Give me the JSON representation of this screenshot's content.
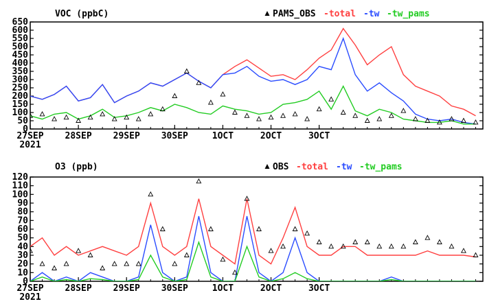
{
  "chart_data": [
    {
      "type": "line",
      "title": "VOC (ppbC)",
      "xlabel": "",
      "ylabel": "",
      "ylim": [
        0,
        650
      ],
      "xlim": [
        0,
        9.4
      ],
      "x_unit": "days since first label (27SEP 2021 00h)",
      "yticks": [
        0,
        50,
        100,
        150,
        200,
        250,
        300,
        350,
        400,
        450,
        500,
        550,
        600,
        650
      ],
      "xticks": [
        {
          "x": 0,
          "label": "27SEP",
          "sublabel": "2021"
        },
        {
          "x": 1,
          "label": "28SEP",
          "sublabel": ""
        },
        {
          "x": 2,
          "label": "29SEP",
          "sublabel": ""
        },
        {
          "x": 3,
          "label": "30SEP",
          "sublabel": ""
        },
        {
          "x": 4,
          "label": "1OCT",
          "sublabel": ""
        },
        {
          "x": 5,
          "label": "2OCT",
          "sublabel": ""
        },
        {
          "x": 6,
          "label": "3OCT",
          "sublabel": ""
        }
      ],
      "grid": false,
      "legend_position": "top-right",
      "legend": [
        {
          "label": "PAMS_OBS",
          "color": "#000000",
          "marker": "triangle"
        },
        {
          "label": "-total",
          "color": "#ff4040",
          "marker": "line"
        },
        {
          "label": "-tw",
          "color": "#2a4cff",
          "marker": "line"
        },
        {
          "label": "-tw_pams",
          "color": "#22cc22",
          "marker": "line"
        }
      ],
      "series": [
        {
          "name": "total",
          "color": "#ff4040",
          "x": [
            0,
            0.25,
            0.5,
            0.75,
            1,
            1.25,
            1.5,
            1.75,
            2,
            2.25,
            2.5,
            2.75,
            3,
            3.25,
            3.5,
            3.75,
            4,
            4.25,
            4.5,
            4.75,
            5,
            5.25,
            5.5,
            5.75,
            6,
            6.25,
            6.5,
            6.75,
            7,
            7.25,
            7.5,
            7.75,
            8,
            8.25,
            8.5,
            8.75,
            9,
            9.25
          ],
          "y": [
            200,
            180,
            210,
            260,
            170,
            190,
            270,
            160,
            200,
            230,
            280,
            260,
            300,
            340,
            290,
            250,
            330,
            380,
            420,
            370,
            320,
            330,
            300,
            360,
            430,
            480,
            610,
            510,
            390,
            450,
            500,
            330,
            260,
            230,
            200,
            140,
            120,
            80
          ]
        },
        {
          "name": "tw",
          "color": "#2a4cff",
          "x": [
            0,
            0.25,
            0.5,
            0.75,
            1,
            1.25,
            1.5,
            1.75,
            2,
            2.25,
            2.5,
            2.75,
            3,
            3.25,
            3.5,
            3.75,
            4,
            4.25,
            4.5,
            4.75,
            5,
            5.25,
            5.5,
            5.75,
            6,
            6.25,
            6.5,
            6.75,
            7,
            7.25,
            7.5,
            7.75,
            8,
            8.25,
            8.5,
            8.75,
            9,
            9.25
          ],
          "y": [
            200,
            180,
            210,
            260,
            170,
            190,
            270,
            160,
            200,
            230,
            280,
            260,
            300,
            340,
            290,
            250,
            330,
            340,
            380,
            320,
            290,
            300,
            270,
            300,
            380,
            360,
            550,
            330,
            230,
            280,
            220,
            170,
            90,
            60,
            50,
            60,
            40,
            30
          ]
        },
        {
          "name": "tw_pams",
          "color": "#22cc22",
          "x": [
            0,
            0.25,
            0.5,
            0.75,
            1,
            1.25,
            1.5,
            1.75,
            2,
            2.25,
            2.5,
            2.75,
            3,
            3.25,
            3.5,
            3.75,
            4,
            4.25,
            4.5,
            4.75,
            5,
            5.25,
            5.5,
            5.75,
            6,
            6.25,
            6.5,
            6.75,
            7,
            7.25,
            7.5,
            7.75,
            8,
            8.25,
            8.5,
            8.75,
            9,
            9.25
          ],
          "y": [
            80,
            60,
            90,
            100,
            60,
            80,
            120,
            70,
            80,
            100,
            130,
            110,
            150,
            130,
            100,
            90,
            140,
            120,
            110,
            90,
            100,
            150,
            160,
            180,
            230,
            120,
            260,
            110,
            80,
            120,
            100,
            60,
            50,
            40,
            40,
            50,
            30,
            30
          ]
        },
        {
          "name": "PAMS_OBS",
          "color": "#000000",
          "marker": "triangle",
          "x": [
            0,
            0.25,
            0.5,
            0.75,
            1,
            1.25,
            1.5,
            1.75,
            2,
            2.25,
            2.5,
            2.75,
            3,
            3.25,
            3.5,
            3.75,
            4,
            4.25,
            4.5,
            4.75,
            5,
            5.25,
            5.5,
            5.75,
            6,
            6.25,
            6.5,
            6.75,
            7,
            7.25,
            7.5,
            7.75,
            8,
            8.25,
            8.5,
            8.75,
            9,
            9.25
          ],
          "y": [
            80,
            90,
            60,
            70,
            50,
            70,
            90,
            60,
            70,
            60,
            90,
            120,
            200,
            350,
            280,
            160,
            210,
            100,
            80,
            60,
            70,
            80,
            90,
            60,
            120,
            180,
            100,
            80,
            50,
            60,
            80,
            110,
            60,
            50,
            40,
            60,
            50,
            40
          ]
        }
      ]
    },
    {
      "type": "line",
      "title": "O3 (ppb)",
      "xlabel": "",
      "ylabel": "",
      "ylim": [
        0,
        120
      ],
      "xlim": [
        0,
        9.4
      ],
      "x_unit": "days since first label (27SEP 2021 00h)",
      "yticks": [
        0,
        10,
        20,
        30,
        40,
        50,
        60,
        70,
        80,
        90,
        100,
        110,
        120
      ],
      "xticks": [
        {
          "x": 0,
          "label": "27SEP",
          "sublabel": "2021"
        },
        {
          "x": 1,
          "label": "28SEP",
          "sublabel": ""
        },
        {
          "x": 2,
          "label": "29SEP",
          "sublabel": ""
        },
        {
          "x": 3,
          "label": "30SEP",
          "sublabel": ""
        },
        {
          "x": 4,
          "label": "1OCT",
          "sublabel": ""
        },
        {
          "x": 5,
          "label": "2OCT",
          "sublabel": ""
        },
        {
          "x": 6,
          "label": "3OCT",
          "sublabel": ""
        }
      ],
      "grid": false,
      "legend_position": "top-right",
      "legend": [
        {
          "label": "OBS",
          "color": "#000000",
          "marker": "triangle"
        },
        {
          "label": "-total",
          "color": "#ff4040",
          "marker": "line"
        },
        {
          "label": "-tw",
          "color": "#2a4cff",
          "marker": "line"
        },
        {
          "label": "-tw_pams",
          "color": "#22cc22",
          "marker": "line"
        }
      ],
      "series": [
        {
          "name": "total",
          "color": "#ff4040",
          "x": [
            0,
            0.25,
            0.5,
            0.75,
            1,
            1.25,
            1.5,
            1.75,
            2,
            2.25,
            2.5,
            2.75,
            3,
            3.25,
            3.5,
            3.75,
            4,
            4.25,
            4.5,
            4.75,
            5,
            5.25,
            5.5,
            5.75,
            6,
            6.25,
            6.5,
            6.75,
            7,
            7.25,
            7.5,
            7.75,
            8,
            8.25,
            8.5,
            8.75,
            9,
            9.25
          ],
          "y": [
            40,
            50,
            30,
            40,
            30,
            35,
            40,
            35,
            30,
            40,
            90,
            40,
            30,
            40,
            95,
            40,
            30,
            20,
            95,
            30,
            20,
            50,
            85,
            40,
            30,
            30,
            40,
            40,
            30,
            30,
            30,
            30,
            30,
            35,
            30,
            30,
            30,
            28
          ]
        },
        {
          "name": "tw",
          "color": "#2a4cff",
          "x": [
            0,
            0.25,
            0.5,
            0.75,
            1,
            1.25,
            1.5,
            1.75,
            2,
            2.25,
            2.5,
            2.75,
            3,
            3.25,
            3.5,
            3.75,
            4,
            4.25,
            4.5,
            4.75,
            5,
            5.25,
            5.5,
            5.75,
            6,
            6.25,
            6.5,
            6.75,
            7,
            7.25,
            7.5,
            7.75,
            8,
            8.25,
            8.5,
            8.75,
            9,
            9.25
          ],
          "y": [
            0,
            10,
            0,
            5,
            0,
            10,
            5,
            0,
            0,
            5,
            65,
            10,
            0,
            5,
            75,
            10,
            0,
            0,
            75,
            10,
            0,
            10,
            50,
            10,
            0,
            0,
            0,
            0,
            0,
            0,
            5,
            0,
            0,
            0,
            0,
            0,
            0,
            0
          ]
        },
        {
          "name": "tw_pams",
          "color": "#22cc22",
          "x": [
            0,
            0.25,
            0.5,
            0.75,
            1,
            1.25,
            1.5,
            1.75,
            2,
            2.25,
            2.5,
            2.75,
            3,
            3.25,
            3.5,
            3.75,
            4,
            4.25,
            4.5,
            4.75,
            5,
            5.25,
            5.5,
            5.75,
            6,
            6.25,
            6.5,
            6.75,
            7,
            7.25,
            7.5,
            7.75,
            8,
            8.25,
            8.5,
            8.75,
            9,
            9.25
          ],
          "y": [
            0,
            5,
            0,
            2,
            0,
            3,
            2,
            0,
            0,
            2,
            30,
            5,
            0,
            2,
            45,
            5,
            0,
            0,
            40,
            5,
            0,
            3,
            10,
            3,
            0,
            0,
            0,
            0,
            0,
            0,
            2,
            0,
            0,
            0,
            0,
            0,
            0,
            0
          ]
        },
        {
          "name": "OBS",
          "color": "#000000",
          "marker": "triangle",
          "x": [
            0,
            0.25,
            0.5,
            0.75,
            1,
            1.25,
            1.5,
            1.75,
            2,
            2.25,
            2.5,
            2.75,
            3,
            3.25,
            3.5,
            3.75,
            4,
            4.25,
            4.5,
            4.75,
            5,
            5.25,
            5.5,
            5.75,
            6,
            6.25,
            6.5,
            6.75,
            7,
            7.25,
            7.5,
            7.75,
            8,
            8.25,
            8.5,
            8.75,
            9,
            9.25
          ],
          "y": [
            35,
            20,
            15,
            20,
            35,
            30,
            15,
            20,
            20,
            20,
            100,
            60,
            20,
            30,
            115,
            60,
            25,
            10,
            95,
            60,
            35,
            40,
            60,
            55,
            45,
            40,
            40,
            45,
            45,
            40,
            40,
            40,
            45,
            50,
            45,
            40,
            35,
            30
          ]
        }
      ]
    }
  ]
}
